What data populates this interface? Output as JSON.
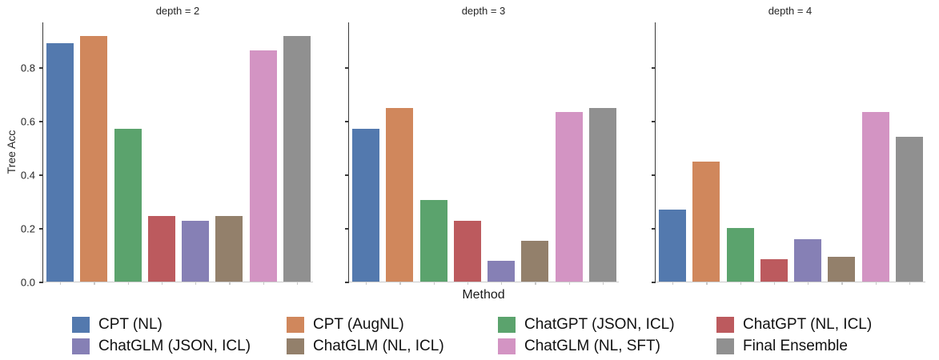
{
  "chart_data": {
    "type": "bar",
    "title": "",
    "xlabel": "Method",
    "ylabel": "Tree Acc",
    "ylim": [
      0,
      0.97
    ],
    "grid": false,
    "legend_position": "bottom",
    "yticks": [
      "0.0",
      "0.2",
      "0.4",
      "0.6",
      "0.8"
    ],
    "ytick_values": [
      0.0,
      0.2,
      0.4,
      0.6,
      0.8
    ],
    "facets": [
      "depth = 2",
      "depth = 3",
      "depth = 4"
    ],
    "series": [
      {
        "name": "CPT (NL)",
        "color": "#5379AE",
        "values": [
          0.89,
          0.57,
          0.268
        ]
      },
      {
        "name": "CPT (AugNL)",
        "color": "#D0875C",
        "values": [
          0.915,
          0.648,
          0.449
        ]
      },
      {
        "name": "ChatGPT (JSON, ICL)",
        "color": "#5BA36D",
        "values": [
          0.57,
          0.305,
          0.199
        ]
      },
      {
        "name": "ChatGPT (NL, ICL)",
        "color": "#BC5A5E",
        "values": [
          0.245,
          0.228,
          0.084
        ]
      },
      {
        "name": "ChatGLM (JSON, ICL)",
        "color": "#8680B5",
        "values": [
          0.228,
          0.078,
          0.159
        ]
      },
      {
        "name": "ChatGLM (NL, ICL)",
        "color": "#93806B",
        "values": [
          0.245,
          0.151,
          0.094
        ]
      },
      {
        "name": "ChatGLM (NL, SFT)",
        "color": "#D394C3",
        "values": [
          0.864,
          0.632,
          0.632
        ]
      },
      {
        "name": "Final Ensemble",
        "color": "#909090",
        "values": [
          0.915,
          0.648,
          0.541
        ]
      }
    ]
  }
}
